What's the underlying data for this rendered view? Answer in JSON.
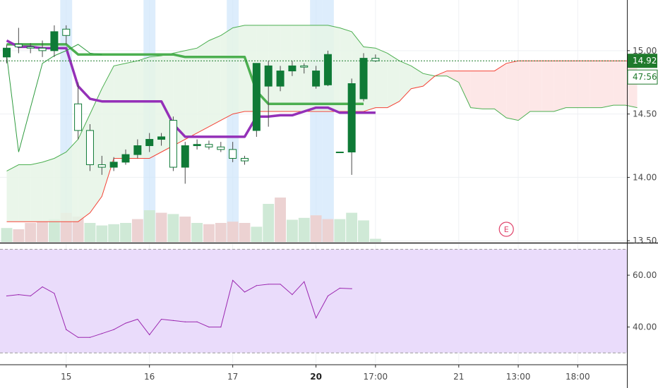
{
  "colors": {
    "bull": "#0f7a36",
    "bear": "#0f7a36",
    "conversion": "#9430b8",
    "base": "#4caf50",
    "span_a": "#4caf50",
    "span_b": "#f44336",
    "cloud_bull": "#e6f4e6",
    "cloud_bear": "#fde3e3",
    "lagging": "#2e9b3e",
    "price_line": "#1b7a2a",
    "rsi": "#9b27b0",
    "rsi_band": "#eadcfb",
    "session_highlight": "#cfe6fb",
    "volume_up": "#cfe9d6",
    "volume_down": "#ecd2d2",
    "grid": "#eef0f3",
    "price_badge": "#1f7a2c",
    "earnings": "#e0426a"
  },
  "chart_data": [
    {
      "type": "candlestick",
      "name": "price",
      "y_axis": {
        "ticks": [
          13.5,
          14.0,
          14.5,
          15.0
        ],
        "tick_labels": [
          "13.50",
          "14.00",
          "14.50",
          "15.00"
        ],
        "range": [
          13.49,
          15.4
        ]
      },
      "x_axis": {
        "ticks": [
          {
            "label": "15",
            "bar": 5,
            "bold": false
          },
          {
            "label": "16",
            "bar": 12,
            "bold": false
          },
          {
            "label": "17",
            "bar": 19,
            "bold": false
          },
          {
            "label": "20",
            "bar": 26,
            "bold": true
          },
          {
            "label": "17:00",
            "bar": 31,
            "bold": false
          },
          {
            "label": "21",
            "bar": 38,
            "bold": false
          },
          {
            "label": "13:00",
            "bar": 43,
            "bold": false
          },
          {
            "label": "18:00",
            "bar": 48,
            "bold": false
          }
        ]
      },
      "candles": [
        {
          "o": 14.95,
          "h": 15.05,
          "l": 14.9,
          "c": 15.02
        },
        {
          "o": 15.05,
          "h": 15.18,
          "l": 14.98,
          "c": 15.03
        },
        {
          "o": 15.03,
          "h": 15.06,
          "l": 14.98,
          "c": 15.02
        },
        {
          "o": 15.02,
          "h": 15.08,
          "l": 14.95,
          "c": 15.0
        },
        {
          "o": 15.0,
          "h": 15.2,
          "l": 14.95,
          "c": 15.15
        },
        {
          "o": 15.17,
          "h": 15.2,
          "l": 15.05,
          "c": 15.12
        },
        {
          "o": 14.58,
          "h": 14.75,
          "l": 14.3,
          "c": 14.37
        },
        {
          "o": 14.37,
          "h": 14.42,
          "l": 14.05,
          "c": 14.1
        },
        {
          "o": 14.1,
          "h": 14.17,
          "l": 14.02,
          "c": 14.08
        },
        {
          "o": 14.08,
          "h": 14.16,
          "l": 14.05,
          "c": 14.12
        },
        {
          "o": 14.12,
          "h": 14.22,
          "l": 14.1,
          "c": 14.18
        },
        {
          "o": 14.18,
          "h": 14.3,
          "l": 14.15,
          "c": 14.25
        },
        {
          "o": 14.25,
          "h": 14.35,
          "l": 14.2,
          "c": 14.3
        },
        {
          "o": 14.3,
          "h": 14.35,
          "l": 14.25,
          "c": 14.32
        },
        {
          "o": 14.45,
          "h": 14.48,
          "l": 14.05,
          "c": 14.08
        },
        {
          "o": 14.08,
          "h": 14.28,
          "l": 13.95,
          "c": 14.25
        },
        {
          "o": 14.25,
          "h": 14.3,
          "l": 14.22,
          "c": 14.26
        },
        {
          "o": 14.26,
          "h": 14.29,
          "l": 14.22,
          "c": 14.24
        },
        {
          "o": 14.24,
          "h": 14.28,
          "l": 14.2,
          "c": 14.22
        },
        {
          "o": 14.22,
          "h": 14.28,
          "l": 14.12,
          "c": 14.15
        },
        {
          "o": 14.15,
          "h": 14.17,
          "l": 14.1,
          "c": 14.13
        },
        {
          "o": 14.37,
          "h": 14.9,
          "l": 14.32,
          "c": 14.9
        },
        {
          "o": 14.72,
          "h": 14.92,
          "l": 14.4,
          "c": 14.88
        },
        {
          "o": 14.72,
          "h": 14.88,
          "l": 14.68,
          "c": 14.84
        },
        {
          "o": 14.84,
          "h": 14.92,
          "l": 14.8,
          "c": 14.88
        },
        {
          "o": 14.88,
          "h": 14.9,
          "l": 14.82,
          "c": 14.87
        },
        {
          "o": 14.72,
          "h": 14.88,
          "l": 14.7,
          "c": 14.84
        },
        {
          "o": 14.73,
          "h": 15.0,
          "l": 14.72,
          "c": 14.97
        },
        {
          "o": 14.2,
          "h": 14.2,
          "l": 14.2,
          "c": 14.2
        },
        {
          "o": 14.2,
          "h": 14.78,
          "l": 14.02,
          "c": 14.74
        },
        {
          "o": 14.62,
          "h": 14.98,
          "l": 14.6,
          "c": 14.94
        },
        {
          "o": 14.94,
          "h": 14.97,
          "l": 14.91,
          "c": 14.92
        }
      ],
      "volume": [
        0.22,
        0.2,
        0.3,
        0.32,
        0.36,
        0.46,
        0.4,
        0.3,
        0.26,
        0.28,
        0.3,
        0.36,
        0.5,
        0.46,
        0.44,
        0.4,
        0.3,
        0.28,
        0.3,
        0.32,
        0.3,
        0.24,
        0.6,
        0.7,
        0.35,
        0.38,
        0.42,
        0.36,
        0.36,
        0.46,
        0.34,
        0.05
      ],
      "volume_up_flags": [
        true,
        false,
        false,
        false,
        true,
        false,
        false,
        true,
        true,
        true,
        true,
        false,
        true,
        false,
        true,
        false,
        true,
        false,
        false,
        false,
        false,
        true,
        true,
        false,
        true,
        true,
        false,
        false,
        true,
        true,
        true,
        true
      ],
      "session_highlights": [
        5,
        12,
        19,
        26,
        27
      ],
      "conversion_line": [
        15.08,
        15.03,
        15.03,
        15.02,
        15.02,
        15.02,
        14.72,
        14.62,
        14.6,
        14.6,
        14.6,
        14.6,
        14.6,
        14.6,
        14.42,
        14.32,
        14.32,
        14.32,
        14.32,
        14.32,
        14.32,
        14.48,
        14.48,
        14.49,
        14.49,
        14.52,
        14.55,
        14.55,
        14.51,
        14.51,
        14.51,
        14.51
      ],
      "base_line": [
        15.05,
        15.05,
        15.05,
        15.05,
        15.05,
        15.05,
        14.97,
        14.97,
        14.97,
        14.97,
        14.97,
        14.97,
        14.97,
        14.97,
        14.97,
        14.95,
        14.95,
        14.95,
        14.95,
        14.95,
        14.95,
        14.68,
        14.58,
        14.58,
        14.58,
        14.58,
        14.58,
        14.58,
        14.58,
        14.58,
        14.58
      ],
      "span_a": [
        14.05,
        14.1,
        14.1,
        14.12,
        14.15,
        14.2,
        14.3,
        14.5,
        14.7,
        14.88,
        14.9,
        14.92,
        14.95,
        14.96,
        14.98,
        15.0,
        15.02,
        15.08,
        15.12,
        15.18,
        15.2,
        15.2,
        15.2,
        15.2,
        15.2,
        15.2,
        15.2,
        15.2,
        15.18,
        15.15,
        15.03,
        15.02,
        14.98,
        14.92,
        14.88,
        14.82,
        14.8,
        14.8,
        14.75,
        14.55,
        14.54,
        14.54,
        14.47,
        14.45,
        14.52,
        14.52,
        14.52,
        14.55,
        14.55,
        14.55,
        14.55,
        14.57,
        14.57,
        14.55
      ],
      "span_b": [
        13.65,
        13.65,
        13.65,
        13.65,
        13.65,
        13.65,
        13.65,
        13.72,
        13.85,
        14.15,
        14.15,
        14.15,
        14.15,
        14.2,
        14.25,
        14.3,
        14.35,
        14.4,
        14.45,
        14.5,
        14.52,
        14.52,
        14.52,
        14.52,
        14.52,
        14.52,
        14.52,
        14.52,
        14.52,
        14.52,
        14.52,
        14.55,
        14.55,
        14.6,
        14.7,
        14.72,
        14.8,
        14.84,
        14.84,
        14.84,
        14.84,
        14.84,
        14.9,
        14.92,
        14.92,
        14.92,
        14.92,
        14.92,
        14.92,
        14.92,
        14.92,
        14.92,
        14.92,
        14.92
      ],
      "lagging_span": [
        14.96,
        14.2,
        14.55,
        14.9,
        14.96,
        15.0,
        15.05,
        14.98,
        14.97
      ],
      "last_price": {
        "value": 14.92,
        "label": "14.92",
        "countdown": "47:56"
      },
      "earnings_marker": {
        "label": "E",
        "bar": 42
      }
    },
    {
      "type": "line",
      "name": "rsi",
      "y_axis": {
        "ticks": [
          40.0,
          60.0
        ],
        "tick_labels": [
          "40.00",
          "60.00"
        ],
        "range": [
          26.0,
          72.0
        ]
      },
      "bands": [
        30,
        70
      ],
      "values": [
        52.0,
        52.5,
        52.0,
        55.5,
        53.0,
        39.0,
        36.0,
        36.0,
        37.5,
        39.0,
        41.5,
        43.0,
        37.0,
        43.0,
        42.5,
        42.0,
        42.0,
        40.0,
        40.0,
        58.0,
        53.5,
        56.0,
        56.5,
        56.5,
        52.5,
        57.5,
        43.5,
        52.0,
        55.0,
        54.8
      ]
    }
  ]
}
